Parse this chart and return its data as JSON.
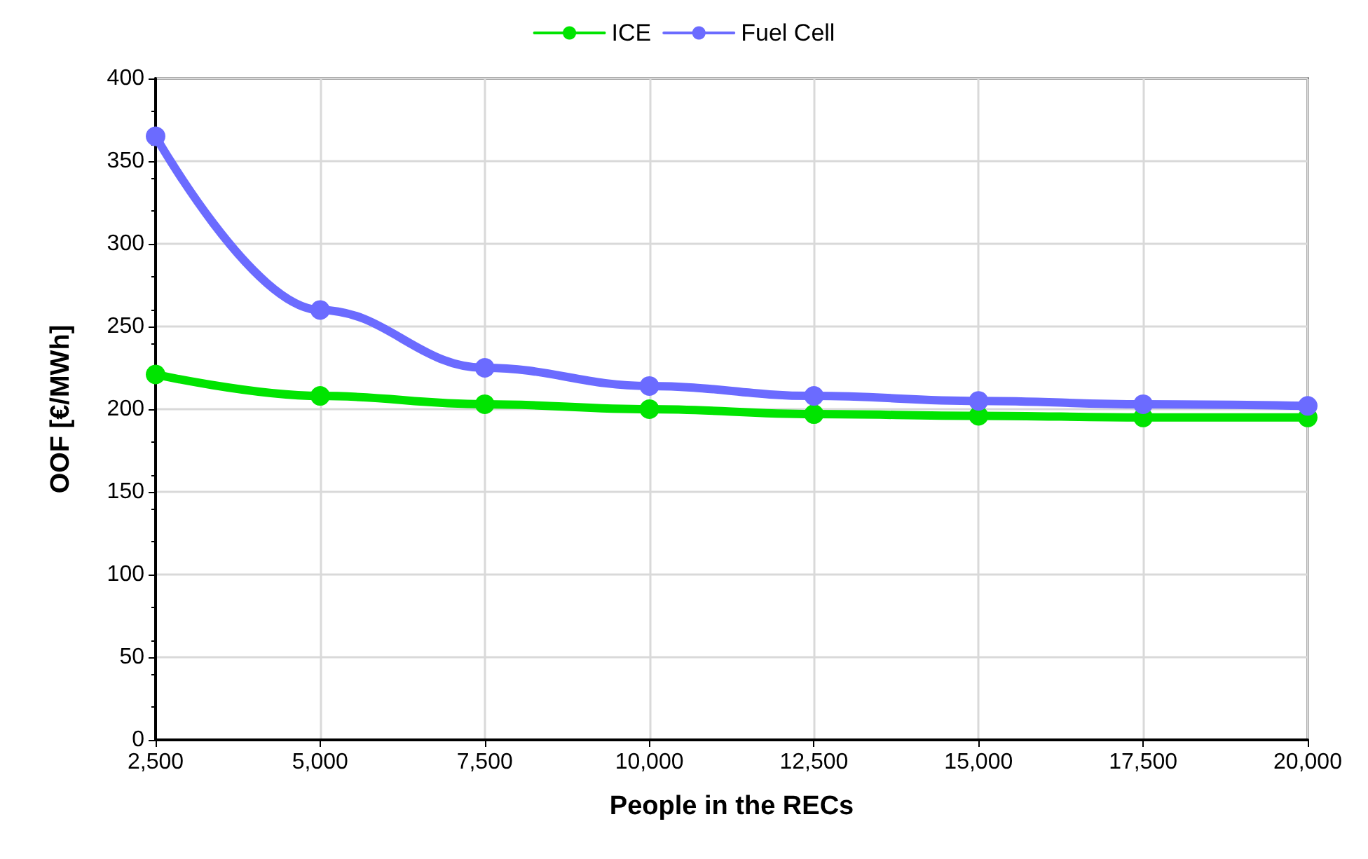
{
  "chart_data": {
    "type": "line",
    "xlabel": "People in the RECs",
    "ylabel": "OOF [€/MWh]",
    "x": [
      2500,
      5000,
      7500,
      10000,
      12500,
      15000,
      17500,
      20000
    ],
    "series": [
      {
        "name": "ICE",
        "color": "#00e400",
        "values": [
          221,
          208,
          203,
          200,
          197,
          196,
          195,
          195
        ]
      },
      {
        "name": "Fuel Cell",
        "color": "#6b6bff",
        "values": [
          365,
          260,
          225,
          214,
          208,
          205,
          203,
          202
        ]
      }
    ],
    "xlim": [
      2500,
      20000
    ],
    "xticks": [
      {
        "value": 2500,
        "label": "2,500"
      },
      {
        "value": 5000,
        "label": "5,000"
      },
      {
        "value": 7500,
        "label": "7,500"
      },
      {
        "value": 10000,
        "label": "10,000"
      },
      {
        "value": 12500,
        "label": "12,500"
      },
      {
        "value": 15000,
        "label": "15,000"
      },
      {
        "value": 17500,
        "label": "17,500"
      },
      {
        "value": 20000,
        "label": "20,000"
      }
    ],
    "ylim": [
      0,
      400
    ],
    "yticks": [
      0,
      50,
      100,
      150,
      200,
      250,
      300,
      350,
      400
    ],
    "grid": true,
    "legend": "top",
    "marker": "circle",
    "line_style": "solid"
  }
}
